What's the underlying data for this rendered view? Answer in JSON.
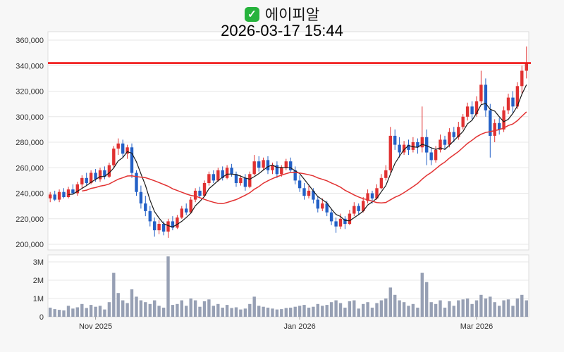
{
  "header": {
    "checkbox_glyph": "✓",
    "title": "에이피알",
    "datetime": "2026-03-17 15:44"
  },
  "colors": {
    "background": "#f7f7f7",
    "plot_bg": "#ffffff",
    "plot_border": "#dddddd",
    "grid": "#e7e7e7",
    "axis_text": "#333333",
    "up": "#e03131",
    "down": "#2360c6",
    "volume_bar": "#97a0b4",
    "checkbox": "#26b33c"
  },
  "chart_data": {
    "type": "candlestick",
    "title": "에이피알",
    "datetime": "2026-03-17 15:44",
    "price_axis": {
      "unit": "KRW",
      "ticks": [
        360000,
        340000,
        320000,
        300000,
        280000,
        260000,
        240000,
        220000,
        200000
      ]
    },
    "volume_axis": {
      "ticks": [
        {
          "label": "3M",
          "value": 3000000
        },
        {
          "label": "2M",
          "value": 2000000
        },
        {
          "label": "1M",
          "value": 1000000
        },
        {
          "label": "0",
          "value": 0
        }
      ]
    },
    "x_axis": {
      "labels": [
        {
          "label": "Nov 2025",
          "index": 10
        },
        {
          "label": "Jan 2026",
          "index": 55
        },
        {
          "label": "Mar 2026",
          "index": 94
        }
      ]
    },
    "price_line": {
      "value": 342000,
      "color": "#f01414"
    },
    "moving_averages": [
      {
        "name": "fast",
        "window": 5,
        "start": 4,
        "color": "#1a1a1a",
        "width": 1.2
      },
      {
        "name": "slow",
        "window": 20,
        "start": 7,
        "color": "#e23232",
        "width": 1.5
      }
    ],
    "candles": {
      "columns": [
        "open",
        "high",
        "low",
        "close",
        "volume"
      ],
      "rows": [
        [
          236000,
          241000,
          233000,
          239000,
          500000
        ],
        [
          239000,
          242000,
          234000,
          235000,
          420000
        ],
        [
          235000,
          243000,
          233000,
          241000,
          380000
        ],
        [
          241000,
          244000,
          236000,
          237000,
          350000
        ],
        [
          237000,
          245000,
          236000,
          243000,
          600000
        ],
        [
          243000,
          247000,
          239000,
          240000,
          450000
        ],
        [
          240000,
          249000,
          238000,
          247000,
          520000
        ],
        [
          247000,
          254000,
          244000,
          252000,
          700000
        ],
        [
          252000,
          256000,
          246000,
          248000,
          480000
        ],
        [
          248000,
          258000,
          247000,
          256000,
          650000
        ],
        [
          256000,
          259000,
          249000,
          251000,
          550000
        ],
        [
          251000,
          260000,
          249000,
          258000,
          600000
        ],
        [
          258000,
          261000,
          251000,
          253000,
          400000
        ],
        [
          253000,
          264000,
          252000,
          262000,
          800000
        ],
        [
          262000,
          277000,
          260000,
          275000,
          2400000
        ],
        [
          275000,
          283000,
          270000,
          279000,
          1300000
        ],
        [
          279000,
          282000,
          268000,
          271000,
          900000
        ],
        [
          271000,
          278000,
          267000,
          276000,
          750000
        ],
        [
          276000,
          279000,
          252000,
          256000,
          1500000
        ],
        [
          256000,
          258000,
          238000,
          241000,
          1100000
        ],
        [
          241000,
          246000,
          228000,
          232000,
          900000
        ],
        [
          232000,
          238000,
          222000,
          226000,
          800000
        ],
        [
          226000,
          230000,
          214000,
          218000,
          700000
        ],
        [
          218000,
          221000,
          206000,
          211000,
          900000
        ],
        [
          211000,
          219000,
          208000,
          216000,
          600000
        ],
        [
          216000,
          218000,
          207000,
          210000,
          500000
        ],
        [
          210000,
          220000,
          205000,
          218000,
          3300000
        ],
        [
          218000,
          222000,
          211000,
          213000,
          650000
        ],
        [
          213000,
          223000,
          212000,
          221000,
          700000
        ],
        [
          221000,
          230000,
          220000,
          228000,
          900000
        ],
        [
          228000,
          232000,
          223000,
          225000,
          600000
        ],
        [
          225000,
          237000,
          224000,
          235000,
          1000000
        ],
        [
          235000,
          244000,
          233000,
          242000,
          900000
        ],
        [
          242000,
          245000,
          236000,
          238000,
          550000
        ],
        [
          238000,
          250000,
          237000,
          248000,
          850000
        ],
        [
          248000,
          257000,
          246000,
          255000,
          950000
        ],
        [
          255000,
          258000,
          248000,
          250000,
          600000
        ],
        [
          250000,
          260000,
          249000,
          258000,
          700000
        ],
        [
          258000,
          261000,
          250000,
          252000,
          500000
        ],
        [
          252000,
          262000,
          251000,
          260000,
          650000
        ],
        [
          260000,
          263000,
          253000,
          255000,
          480000
        ],
        [
          255000,
          257000,
          245000,
          248000,
          520000
        ],
        [
          248000,
          254000,
          246000,
          252000,
          400000
        ],
        [
          252000,
          255000,
          242000,
          245000,
          450000
        ],
        [
          245000,
          257000,
          244000,
          255000,
          700000
        ],
        [
          255000,
          270000,
          254000,
          265000,
          1100000
        ],
        [
          265000,
          269000,
          257000,
          260000,
          600000
        ],
        [
          260000,
          268000,
          258000,
          266000,
          550000
        ],
        [
          266000,
          269000,
          255000,
          258000,
          500000
        ],
        [
          258000,
          264000,
          255000,
          262000,
          450000
        ],
        [
          262000,
          265000,
          252000,
          255000,
          400000
        ],
        [
          255000,
          262000,
          253000,
          260000,
          420000
        ],
        [
          260000,
          267000,
          258000,
          265000,
          480000
        ],
        [
          265000,
          268000,
          256000,
          258000,
          500000
        ],
        [
          258000,
          261000,
          247000,
          250000,
          550000
        ],
        [
          250000,
          254000,
          241000,
          244000,
          600000
        ],
        [
          244000,
          248000,
          235000,
          238000,
          650000
        ],
        [
          238000,
          246000,
          236000,
          242000,
          500000
        ],
        [
          242000,
          244000,
          232000,
          235000,
          550000
        ],
        [
          235000,
          238000,
          225000,
          228000,
          700000
        ],
        [
          228000,
          236000,
          226000,
          232000,
          600000
        ],
        [
          232000,
          234000,
          222000,
          225000,
          650000
        ],
        [
          225000,
          228000,
          215000,
          218000,
          800000
        ],
        [
          218000,
          221000,
          209000,
          214000,
          900000
        ],
        [
          214000,
          224000,
          212000,
          220000,
          750000
        ],
        [
          220000,
          222000,
          212000,
          216000,
          500000
        ],
        [
          216000,
          227000,
          215000,
          224000,
          850000
        ],
        [
          224000,
          233000,
          222000,
          230000,
          900000
        ],
        [
          230000,
          232000,
          223000,
          226000,
          450000
        ],
        [
          226000,
          237000,
          225000,
          234000,
          700000
        ],
        [
          234000,
          243000,
          232000,
          240000,
          800000
        ],
        [
          240000,
          242000,
          232000,
          236000,
          500000
        ],
        [
          236000,
          247000,
          235000,
          244000,
          750000
        ],
        [
          244000,
          255000,
          243000,
          252000,
          900000
        ],
        [
          252000,
          262000,
          250000,
          258000,
          1000000
        ],
        [
          258000,
          292000,
          256000,
          285000,
          1600000
        ],
        [
          285000,
          290000,
          274000,
          278000,
          1200000
        ],
        [
          278000,
          284000,
          268000,
          272000,
          900000
        ],
        [
          272000,
          281000,
          270000,
          278000,
          800000
        ],
        [
          278000,
          282000,
          270000,
          274000,
          600000
        ],
        [
          274000,
          284000,
          272000,
          280000,
          700000
        ],
        [
          280000,
          283000,
          271000,
          276000,
          500000
        ],
        [
          276000,
          308000,
          272000,
          284000,
          2400000
        ],
        [
          284000,
          290000,
          262000,
          272000,
          1900000
        ],
        [
          272000,
          276000,
          262000,
          266000,
          800000
        ],
        [
          266000,
          277000,
          264000,
          274000,
          700000
        ],
        [
          274000,
          286000,
          272000,
          282000,
          900000
        ],
        [
          282000,
          285000,
          274000,
          278000,
          500000
        ],
        [
          278000,
          291000,
          276000,
          288000,
          850000
        ],
        [
          288000,
          292000,
          280000,
          284000,
          600000
        ],
        [
          284000,
          296000,
          282000,
          292000,
          900000
        ],
        [
          292000,
          302000,
          290000,
          300000,
          950000
        ],
        [
          300000,
          311000,
          297000,
          308000,
          1000000
        ],
        [
          308000,
          312000,
          298000,
          302000,
          700000
        ],
        [
          302000,
          316000,
          300000,
          312000,
          900000
        ],
        [
          312000,
          336000,
          310000,
          325000,
          1200000
        ],
        [
          325000,
          330000,
          300000,
          305000,
          1000000
        ],
        [
          305000,
          310000,
          268000,
          285000,
          1100000
        ],
        [
          285000,
          298000,
          280000,
          295000,
          800000
        ],
        [
          295000,
          299000,
          286000,
          290000,
          600000
        ],
        [
          290000,
          308000,
          288000,
          305000,
          900000
        ],
        [
          305000,
          318000,
          302000,
          315000,
          950000
        ],
        [
          315000,
          320000,
          303000,
          308000,
          600000
        ],
        [
          308000,
          327000,
          306000,
          324000,
          1000000
        ],
        [
          324000,
          340000,
          318000,
          336000,
          1200000
        ],
        [
          336000,
          355000,
          330000,
          342000,
          900000
        ]
      ]
    }
  }
}
